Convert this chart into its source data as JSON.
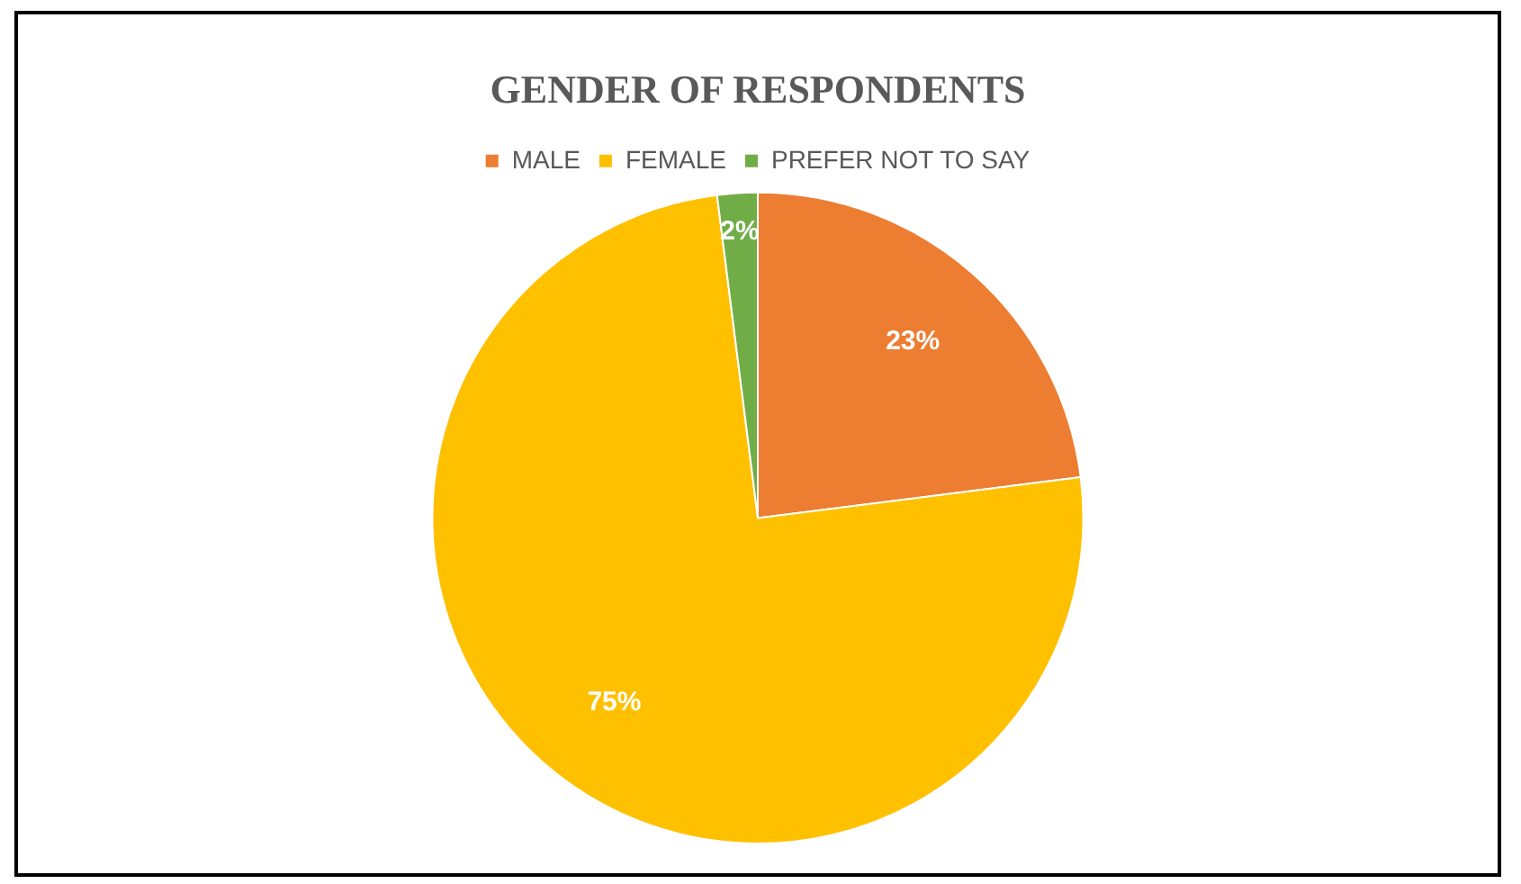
{
  "chart_data": {
    "type": "pie",
    "title": "GENDER OF RESPONDENTS",
    "categories": [
      "MALE",
      "FEMALE",
      "PREFER NOT TO SAY"
    ],
    "values": [
      23,
      75,
      2
    ],
    "colors": [
      "#ed7d31",
      "#ffc000",
      "#70ad47"
    ],
    "value_labels": [
      "23%",
      "75%",
      "2%"
    ],
    "legend": "top"
  }
}
